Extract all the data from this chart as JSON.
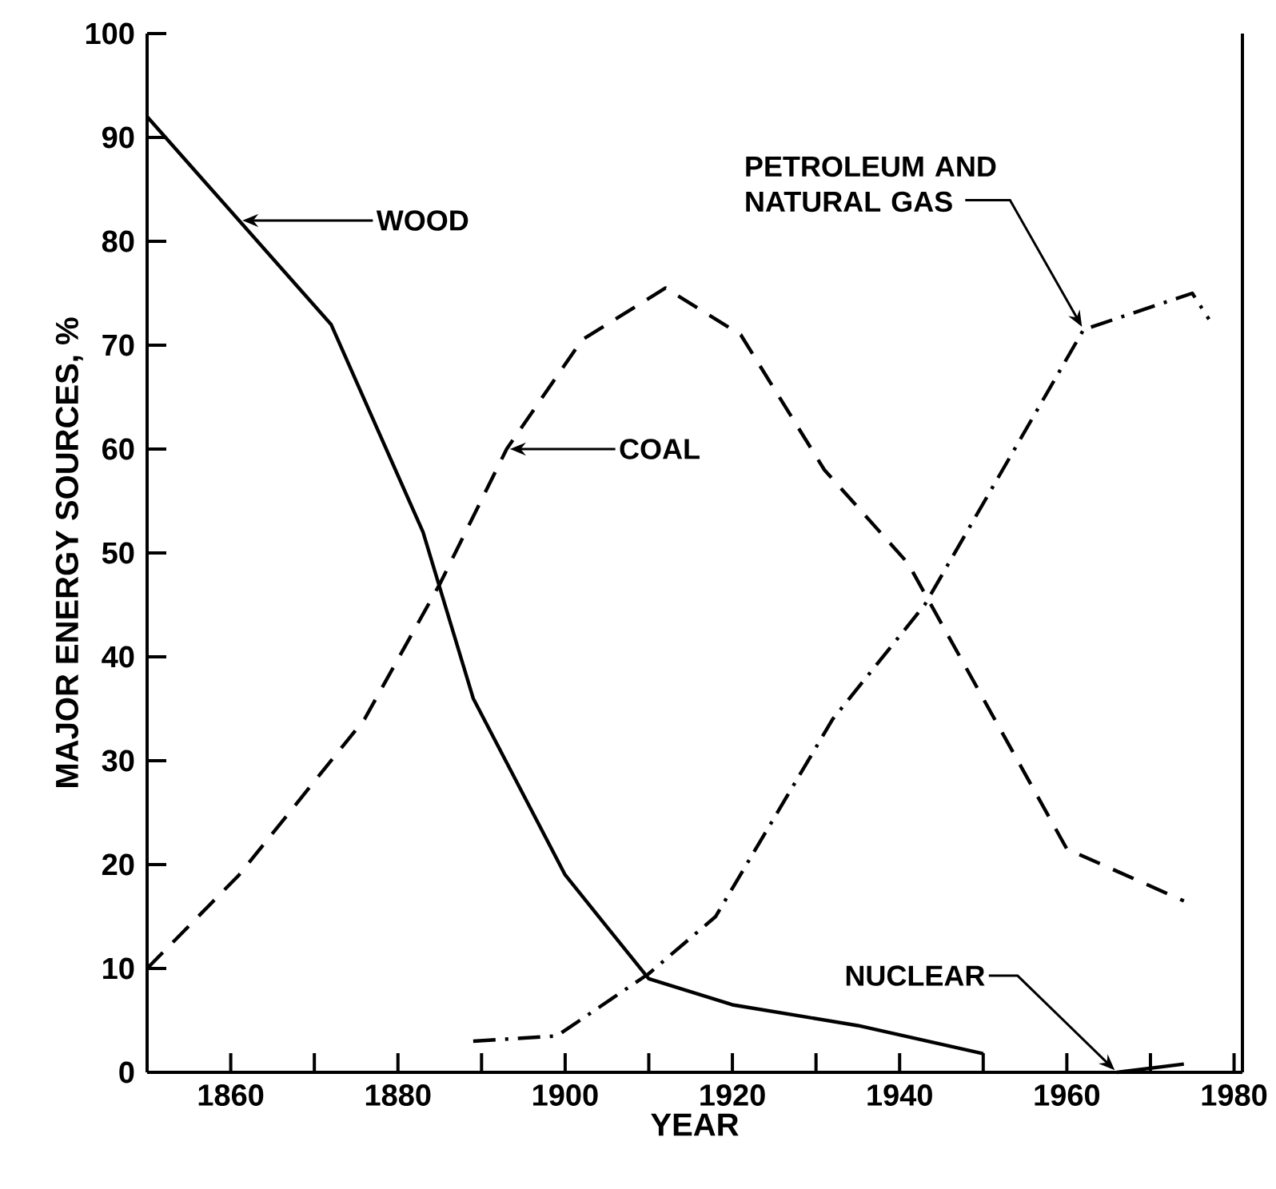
{
  "chart_data": {
    "type": "line",
    "xlabel": "YEAR",
    "ylabel": "MAJOR ENERGY SOURCES, %",
    "xlim": [
      1850,
      1981
    ],
    "ylim": [
      0,
      100
    ],
    "xticks": [
      {
        "value": 1860,
        "label": "1860"
      },
      {
        "value": 1870,
        "label": null
      },
      {
        "value": 1880,
        "label": "1880"
      },
      {
        "value": 1890,
        "label": null
      },
      {
        "value": 1900,
        "label": "1900"
      },
      {
        "value": 1910,
        "label": null
      },
      {
        "value": 1920,
        "label": "1920"
      },
      {
        "value": 1930,
        "label": null
      },
      {
        "value": 1940,
        "label": "1940"
      },
      {
        "value": 1950,
        "label": null
      },
      {
        "value": 1960,
        "label": "1960"
      },
      {
        "value": 1970,
        "label": null
      },
      {
        "value": 1980,
        "label": "1980"
      }
    ],
    "yticks": [
      0,
      10,
      20,
      30,
      40,
      50,
      60,
      70,
      80,
      90,
      100
    ],
    "grid": false,
    "annotations": [
      "WOOD",
      "COAL",
      {
        "text": "PETROLEUM AND NATURAL GAS",
        "x": 1962,
        "y": 71.5
      },
      {
        "text": "NUCLEAR",
        "x": 1966,
        "y": 0
      }
    ],
    "series": [
      {
        "color": "#000000",
        "line_style": "solid",
        "x": [
          1850,
          1861,
          1872,
          1883,
          1889,
          1900,
          1910,
          1920,
          1935,
          1950
        ],
        "values": [
          92,
          82,
          72,
          52,
          36,
          19,
          9,
          6.5,
          4.5,
          1.8
        ]
      },
      {
        "color": "#000000",
        "line_style": "dashed",
        "x": [
          1850,
          1861,
          1876,
          1885,
          1893,
          1902,
          1912,
          1921,
          1931,
          1941,
          1960,
          1974
        ],
        "values": [
          10,
          19,
          34,
          47,
          60,
          70.5,
          75.5,
          71,
          58,
          49,
          21.5,
          16.5
        ]
      },
      {
        "color": "#000000",
        "line_style": "dashdot",
        "x": [
          1889,
          1899,
          1910,
          1918,
          1932,
          1943,
          1962,
          1975,
          1977
        ],
        "values": [
          3,
          3.5,
          9.5,
          15,
          34,
          45,
          71.5,
          75,
          72.5
        ]
      },
      {
        "color": "#000000",
        "line_style": "solid",
        "x": [
          1966,
          1974
        ],
        "values": [
          0,
          0.8
        ]
      }
    ]
  }
}
